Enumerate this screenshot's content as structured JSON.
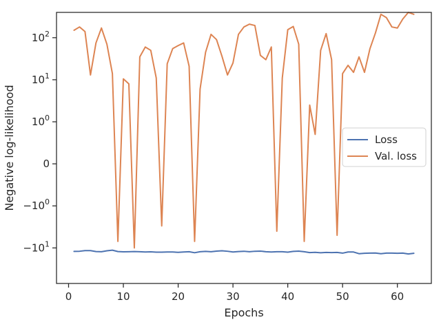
{
  "chart_data": {
    "type": "line",
    "title": "",
    "xlabel": "Epochs",
    "ylabel": "Negative log-likelihood",
    "yscale": "symlog",
    "linthresh": 1,
    "xlim": [
      -2.2,
      66.2
    ],
    "ylim": [
      -70,
      400
    ],
    "x_ticks": [
      0,
      10,
      20,
      30,
      40,
      50,
      60
    ],
    "y_ticks": [
      {
        "value": 100,
        "label": "10^2"
      },
      {
        "value": 10,
        "label": "10^1"
      },
      {
        "value": 1,
        "label": "10^0"
      },
      {
        "value": 0,
        "label": "0"
      },
      {
        "value": -1,
        "label": "−10^0"
      },
      {
        "value": -10,
        "label": "−10^1"
      }
    ],
    "legend": {
      "position": "center-right"
    },
    "series": [
      {
        "name": "Loss",
        "color": "#4c72b0",
        "x": [
          1,
          2,
          3,
          4,
          5,
          6,
          7,
          8,
          9,
          10,
          11,
          12,
          13,
          14,
          15,
          16,
          17,
          18,
          19,
          20,
          21,
          22,
          23,
          24,
          25,
          26,
          27,
          28,
          29,
          30,
          31,
          32,
          33,
          34,
          35,
          36,
          37,
          38,
          39,
          40,
          41,
          42,
          43,
          44,
          45,
          46,
          47,
          48,
          49,
          50,
          51,
          52,
          53,
          54,
          55,
          56,
          57,
          58,
          59,
          60,
          61,
          62,
          63
        ],
        "values": [
          -12.1,
          -12.0,
          -11.6,
          -11.6,
          -12.2,
          -12.3,
          -11.7,
          -11.3,
          -12.2,
          -12.4,
          -12.3,
          -12.2,
          -12.3,
          -12.5,
          -12.4,
          -12.6,
          -12.6,
          -12.5,
          -12.5,
          -12.7,
          -12.5,
          -12.3,
          -13.0,
          -12.3,
          -12.1,
          -12.3,
          -11.9,
          -11.7,
          -12.0,
          -12.5,
          -12.2,
          -12.0,
          -12.3,
          -12.0,
          -11.9,
          -12.3,
          -12.5,
          -12.3,
          -12.3,
          -12.6,
          -12.1,
          -11.9,
          -12.3,
          -12.9,
          -12.7,
          -13.0,
          -12.8,
          -12.9,
          -12.8,
          -13.3,
          -12.5,
          -12.5,
          -13.7,
          -13.4,
          -13.3,
          -13.2,
          -13.7,
          -13.3,
          -13.3,
          -13.4,
          -13.3,
          -13.9,
          -13.4
        ]
      },
      {
        "name": "Val. loss",
        "color": "#dd8452",
        "x": [
          1,
          2,
          3,
          4,
          5,
          6,
          7,
          8,
          9,
          10,
          11,
          12,
          13,
          14,
          15,
          16,
          17,
          18,
          19,
          20,
          21,
          22,
          23,
          24,
          25,
          26,
          27,
          28,
          29,
          30,
          31,
          32,
          33,
          34,
          35,
          36,
          37,
          38,
          39,
          40,
          41,
          42,
          43,
          44,
          45,
          46,
          47,
          48,
          49,
          50,
          51,
          52,
          53,
          54,
          55,
          56,
          57,
          58,
          59,
          60,
          61,
          62,
          63
        ],
        "values": [
          150,
          180,
          140,
          13,
          75,
          170,
          70,
          14,
          -7,
          10.5,
          8,
          -10,
          35,
          60,
          50,
          11,
          -3,
          24,
          55,
          65,
          75,
          21,
          -7,
          6,
          45,
          120,
          90,
          36,
          13,
          25,
          120,
          180,
          210,
          195,
          38,
          30,
          60,
          -4,
          11,
          155,
          185,
          70,
          -7,
          2.5,
          0.7,
          50,
          125,
          30,
          -5,
          14,
          22,
          15,
          35,
          15,
          55,
          130,
          360,
          300,
          180,
          170,
          280,
          400,
          360
        ]
      }
    ]
  }
}
